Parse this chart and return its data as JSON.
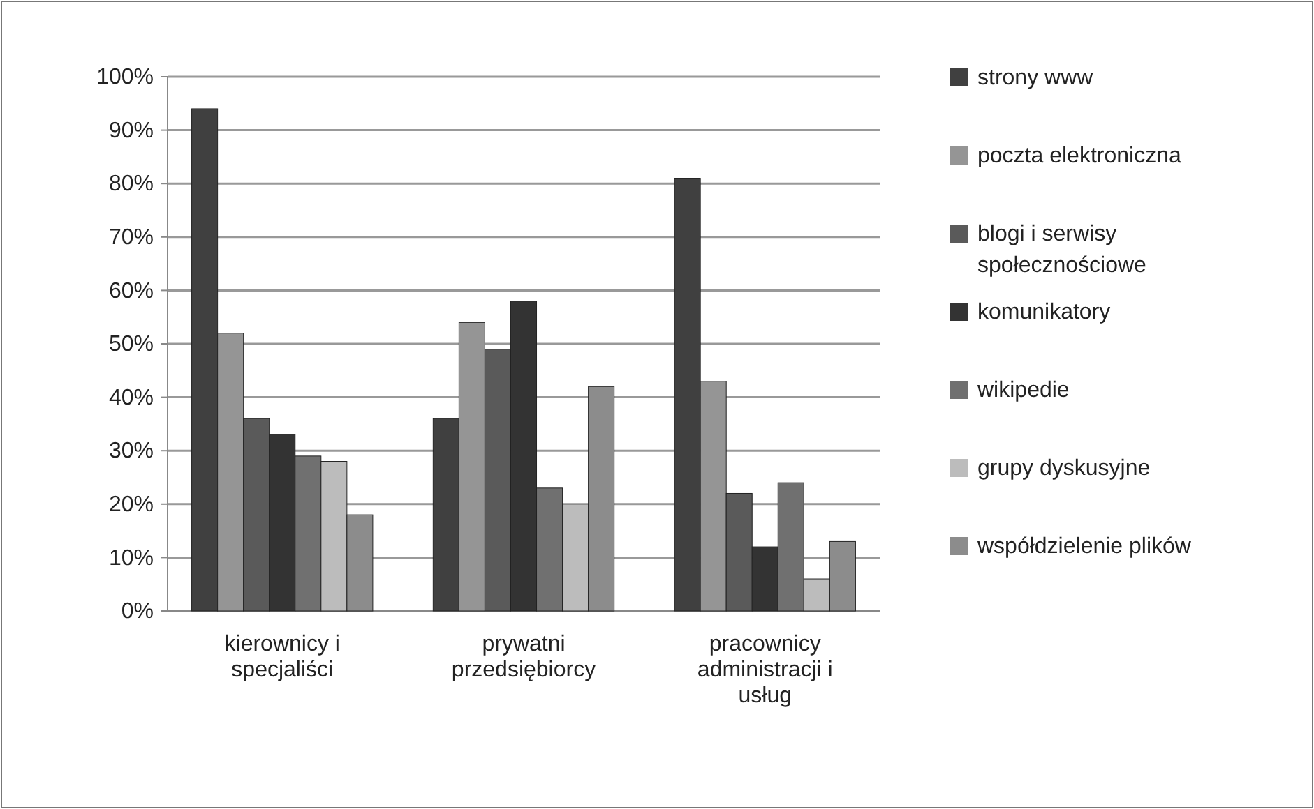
{
  "chart_data": {
    "type": "bar",
    "categories": [
      "kierownicy i specjaliści",
      "prywatni przedsiębiorcy",
      "pracownicy administracji i usług"
    ],
    "series": [
      {
        "name": "strony www",
        "color": "#404040",
        "values": [
          94,
          36,
          81
        ]
      },
      {
        "name": "poczta elektroniczna",
        "color": "#959595",
        "values": [
          52,
          54,
          43
        ]
      },
      {
        "name": "blogi i serwisy społecznościowe",
        "color": "#5a5a5a",
        "values": [
          36,
          49,
          22
        ]
      },
      {
        "name": "komunikatory",
        "color": "#333333",
        "values": [
          33,
          58,
          12
        ]
      },
      {
        "name": "wikipedie",
        "color": "#707070",
        "values": [
          29,
          23,
          24
        ]
      },
      {
        "name": "grupy dyskusyjne",
        "color": "#bcbcbc",
        "values": [
          28,
          20,
          6
        ]
      },
      {
        "name": "współdzielenie plików",
        "color": "#8c8c8c",
        "values": [
          18,
          42,
          13
        ]
      }
    ],
    "ylim": [
      0,
      100
    ],
    "yticks": [
      {
        "value": 0,
        "label": "0%"
      },
      {
        "value": 10,
        "label": "10%"
      },
      {
        "value": 20,
        "label": "20%"
      },
      {
        "value": 30,
        "label": "30%"
      },
      {
        "value": 40,
        "label": "40%"
      },
      {
        "value": 50,
        "label": "50%"
      },
      {
        "value": 60,
        "label": "60%"
      },
      {
        "value": 70,
        "label": "70%"
      },
      {
        "value": 80,
        "label": "80%"
      },
      {
        "value": 90,
        "label": "90%"
      },
      {
        "value": 100,
        "label": "100%"
      }
    ],
    "grid": "y",
    "legend": "right"
  }
}
